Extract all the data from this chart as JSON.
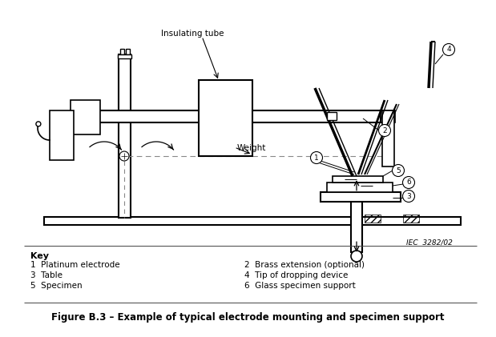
{
  "title": "Figure B.3 – Example of typical electrode mounting and specimen support",
  "iec_ref": "IEC  3282/02",
  "key_title": "Key",
  "key_items_left": [
    "1  Platinum electrode",
    "3  Table",
    "5  Specimen"
  ],
  "key_items_right": [
    "2  Brass extension (optional)",
    "4  Tip of dropping device",
    "6  Glass specimen support"
  ],
  "insulating_tube_label": "Insulating tube",
  "weight_label": "Weight",
  "bg_color": "#ffffff",
  "line_color": "#000000"
}
